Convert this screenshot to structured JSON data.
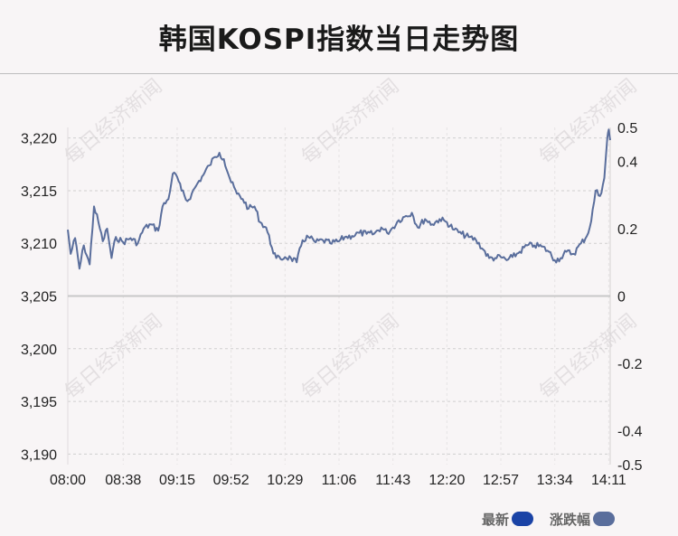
{
  "title": "韩国KOSPI指数当日走势图",
  "watermark": "每日经济新闻",
  "colors": {
    "line": "#5a6e9c",
    "legend_latest": "#1a43a6",
    "legend_change": "#5a6e9c",
    "grid": "#cfcfcf",
    "zero_line": "#c8c8c8",
    "text": "#222222"
  },
  "legend": [
    {
      "label": "最新",
      "color": "#1a43a6"
    },
    {
      "label": "涨跌幅",
      "color": "#5a6e9c"
    }
  ],
  "chart_data": {
    "type": "line",
    "title": "韩国KOSPI指数当日走势图",
    "x_ticks": [
      "08:00",
      "08:38",
      "09:15",
      "09:52",
      "10:29",
      "11:06",
      "11:43",
      "12:20",
      "12:57",
      "13:34",
      "14:11"
    ],
    "y_left": {
      "ticks": [
        3190,
        3195,
        3200,
        3205,
        3210,
        3215,
        3220
      ],
      "tick_labels": [
        "3,190",
        "3,195",
        "3,200",
        "3,205",
        "3,210",
        "3,215",
        "3,220"
      ],
      "range": [
        3189,
        3221
      ]
    },
    "y_right": {
      "ticks": [
        -0.5,
        -0.4,
        -0.2,
        0,
        0.2,
        0.4,
        0.5
      ],
      "tick_labels": [
        "-0.5",
        "-0.4",
        "-0.2",
        "0",
        "0.2",
        "0.4",
        "0.5"
      ],
      "range": [
        -0.5,
        0.5
      ]
    },
    "grid": true,
    "series": [
      {
        "name": "最新",
        "points": [
          [
            "08:00",
            3211.3
          ],
          [
            "08:02",
            3209.0
          ],
          [
            "08:05",
            3210.5
          ],
          [
            "08:08",
            3207.6
          ],
          [
            "08:11",
            3209.8
          ],
          [
            "08:15",
            3208.0
          ],
          [
            "08:18",
            3213.5
          ],
          [
            "08:21",
            3212.0
          ],
          [
            "08:24",
            3210.2
          ],
          [
            "08:27",
            3211.4
          ],
          [
            "08:30",
            3208.6
          ],
          [
            "08:33",
            3210.6
          ],
          [
            "08:38",
            3210.1
          ],
          [
            "08:43",
            3210.5
          ],
          [
            "08:48",
            3210.0
          ],
          [
            "08:52",
            3211.4
          ],
          [
            "08:57",
            3211.8
          ],
          [
            "09:02",
            3211.2
          ],
          [
            "09:05",
            3213.5
          ],
          [
            "09:09",
            3214.2
          ],
          [
            "09:12",
            3216.6
          ],
          [
            "09:15",
            3216.3
          ],
          [
            "09:18",
            3215.0
          ],
          [
            "09:22",
            3214.0
          ],
          [
            "09:25",
            3214.7
          ],
          [
            "09:29",
            3215.7
          ],
          [
            "09:33",
            3216.5
          ],
          [
            "09:37",
            3217.4
          ],
          [
            "09:41",
            3218.2
          ],
          [
            "09:44",
            3218.6
          ],
          [
            "09:47",
            3218.0
          ],
          [
            "09:52",
            3215.8
          ],
          [
            "09:56",
            3214.7
          ],
          [
            "10:00",
            3214.2
          ],
          [
            "10:04",
            3213.3
          ],
          [
            "10:08",
            3213.5
          ],
          [
            "10:12",
            3212.0
          ],
          [
            "10:16",
            3211.5
          ],
          [
            "10:20",
            3209.6
          ],
          [
            "10:23",
            3208.6
          ],
          [
            "10:26",
            3208.5
          ],
          [
            "10:29",
            3208.7
          ],
          [
            "10:33",
            3208.6
          ],
          [
            "10:37",
            3208.2
          ],
          [
            "10:41",
            3210.3
          ],
          [
            "10:45",
            3210.6
          ],
          [
            "10:50",
            3210.1
          ],
          [
            "10:55",
            3210.3
          ],
          [
            "11:00",
            3210.0
          ],
          [
            "11:06",
            3210.2
          ],
          [
            "11:10",
            3210.6
          ],
          [
            "11:15",
            3210.7
          ],
          [
            "11:20",
            3211.0
          ],
          [
            "11:25",
            3210.9
          ],
          [
            "11:30",
            3210.9
          ],
          [
            "11:35",
            3211.5
          ],
          [
            "11:39",
            3211.0
          ],
          [
            "11:43",
            3211.5
          ],
          [
            "11:47",
            3212.2
          ],
          [
            "11:52",
            3212.6
          ],
          [
            "11:56",
            3212.9
          ],
          [
            "12:00",
            3211.5
          ],
          [
            "12:05",
            3212.3
          ],
          [
            "12:10",
            3211.8
          ],
          [
            "12:15",
            3212.3
          ],
          [
            "12:20",
            3212.0
          ],
          [
            "12:25",
            3211.3
          ],
          [
            "12:30",
            3210.9
          ],
          [
            "12:35",
            3210.6
          ],
          [
            "12:40",
            3210.3
          ],
          [
            "12:45",
            3209.4
          ],
          [
            "12:49",
            3208.6
          ],
          [
            "12:53",
            3208.6
          ],
          [
            "12:57",
            3208.7
          ],
          [
            "13:01",
            3208.4
          ],
          [
            "13:05",
            3208.7
          ],
          [
            "13:10",
            3209.2
          ],
          [
            "13:15",
            3209.8
          ],
          [
            "13:20",
            3209.8
          ],
          [
            "13:25",
            3209.7
          ],
          [
            "13:30",
            3209.2
          ],
          [
            "13:34",
            3208.4
          ],
          [
            "13:38",
            3208.6
          ],
          [
            "13:42",
            3209.2
          ],
          [
            "13:47",
            3209.0
          ],
          [
            "13:52",
            3210.0
          ],
          [
            "13:56",
            3210.7
          ],
          [
            "13:59",
            3212.1
          ],
          [
            "14:02",
            3215.0
          ],
          [
            "14:05",
            3214.5
          ],
          [
            "14:08",
            3216.2
          ],
          [
            "14:10",
            3220.0
          ],
          [
            "14:11",
            3220.8
          ],
          [
            "14:12",
            3219.8
          ]
        ]
      }
    ]
  }
}
